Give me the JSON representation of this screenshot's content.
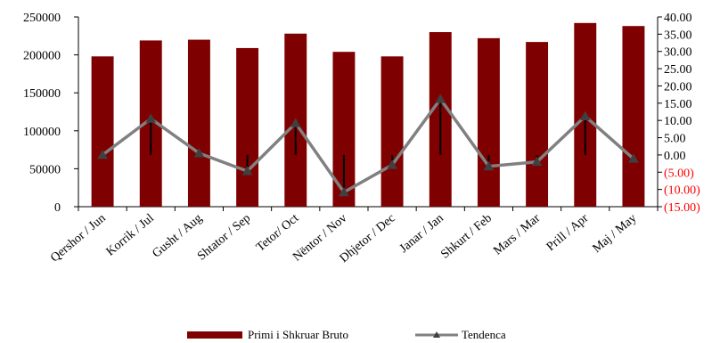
{
  "chart_data": {
    "type": "bar",
    "categories": [
      "Qershor / Jun",
      "Korrik / Jul",
      "Gusht / Aug",
      "Shtator / Sep",
      "Tetor/ Oct",
      "Nëntor / Nov",
      "Dhjetor / Dec",
      "Janar / Jan",
      "Shkurt / Feb",
      "Mars / Mar",
      "Prill / Apr",
      "Maj / May"
    ],
    "series": [
      {
        "name": "Primi i Shkruar Bruto",
        "type": "bar",
        "axis": "left",
        "color": "#7f0000",
        "values": [
          198000,
          219000,
          220000,
          209000,
          228000,
          204000,
          198000,
          230000,
          222000,
          217000,
          242000,
          238000
        ]
      },
      {
        "name": "Tendenca",
        "type": "line",
        "axis": "right",
        "color": "#808080",
        "marker": "triangle",
        "values": [
          0.0,
          10.5,
          0.5,
          -4.7,
          9.2,
          -10.8,
          -2.9,
          16.2,
          -3.3,
          -2.0,
          11.2,
          -1.1
        ]
      }
    ],
    "y_left": {
      "ylim": [
        0,
        250000
      ],
      "ticks": [
        "0",
        "50000",
        "100000",
        "150000",
        "200000",
        "250000"
      ]
    },
    "y_right": {
      "ylim": [
        -15,
        40
      ],
      "ticks": [
        "(15.00)",
        "(10.00)",
        "(5.00)",
        "0.00",
        "5.00",
        "10.00",
        "15.00",
        "20.00",
        "25.00",
        "30.00",
        "35.00",
        "40.00"
      ],
      "negative_color": "#ff0000"
    },
    "legend_position": "bottom",
    "grid": false
  }
}
